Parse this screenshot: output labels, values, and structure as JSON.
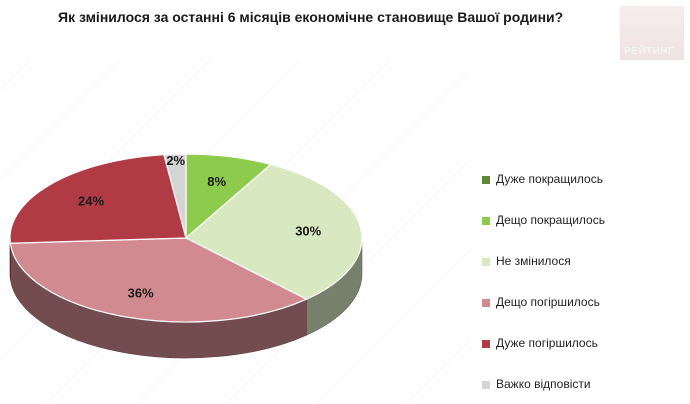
{
  "header": {
    "title": "Як змінилося за останні 6 місяців економічне становище Вашої родини?",
    "logo_text": "РЕЙТИНГ"
  },
  "chart_data": {
    "type": "pie",
    "title": "Як змінилося за останні 6 місяців економічне становище Вашої родини?",
    "legend_position": "right",
    "slices": [
      {
        "label": "Дуже покращилось",
        "value": 0,
        "data_label": "",
        "color": "#5f8a35"
      },
      {
        "label": "Дещо покращилось",
        "value": 8,
        "data_label": "8%",
        "color": "#8ccb4c"
      },
      {
        "label": "Не змінилося",
        "value": 30,
        "data_label": "30%",
        "color": "#d8e8c1"
      },
      {
        "label": "Дещо погіршилось",
        "value": 36,
        "data_label": "36%",
        "color": "#d18a8f"
      },
      {
        "label": "Дуже погіршилось",
        "value": 24,
        "data_label": "24%",
        "color": "#b13b45"
      },
      {
        "label": "Важко відповісти",
        "value": 2,
        "data_label": "2%",
        "color": "#d4d4d4"
      }
    ]
  }
}
